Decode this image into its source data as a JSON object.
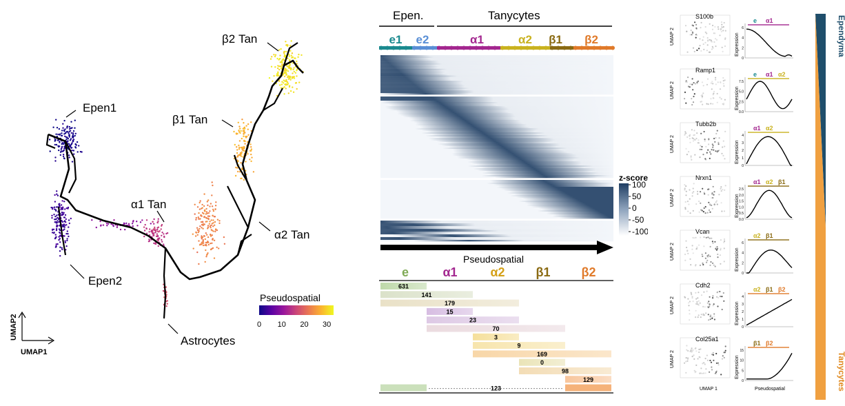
{
  "umap": {
    "labels": {
      "epen1": "Epen1",
      "epen2": "Epen2",
      "a1": "α1 Tan",
      "a2": "α2 Tan",
      "b1": "β1 Tan",
      "b2": "β2 Tan",
      "astro": "Astrocytes"
    },
    "axis_x": "UMAP1",
    "axis_y": "UMAP2",
    "colorbar": {
      "title": "Pseudospatial",
      "ticks": [
        "0",
        "10",
        "20",
        "30"
      ],
      "min": 0,
      "max": 33,
      "colors": [
        "#0d0887",
        "#5b02a3",
        "#9a179b",
        "#cb4678",
        "#eb7852",
        "#fbb32f",
        "#eff821"
      ]
    }
  },
  "heatmap": {
    "header_left": "Epen.",
    "header_right": "Tanycytes",
    "groups": [
      {
        "label": "e1",
        "color": "#1b8a8f"
      },
      {
        "label": "e2",
        "color": "#5a8fd6"
      },
      {
        "label": "α1",
        "color": "#a3278f"
      },
      {
        "label": "α2",
        "color": "#c9b21f"
      },
      {
        "label": "β1",
        "color": "#8a6a12"
      },
      {
        "label": "β2",
        "color": "#e07a2a"
      }
    ],
    "arrow_label": "Pseudospatial",
    "legend_title": "z-score",
    "legend_ticks": [
      "100",
      "50",
      "0",
      "-50",
      "-100"
    ],
    "colors": {
      "high": "#1f3e63",
      "low": "#f3f6fa"
    }
  },
  "gene_sets": {
    "columns": [
      {
        "label": "e",
        "color": "#7faa55"
      },
      {
        "label": "α1",
        "color": "#a3278f"
      },
      {
        "label": "α2",
        "color": "#d4a017"
      },
      {
        "label": "β1",
        "color": "#8a6a12"
      },
      {
        "label": "β2",
        "color": "#e07a2a"
      }
    ],
    "chart_data": {
      "type": "table",
      "rows": [
        {
          "count": "631",
          "from": 0,
          "to": 1,
          "color": "#a9cc8e"
        },
        {
          "count": "141",
          "from": 0,
          "to": 2,
          "color": "#cfd8b8"
        },
        {
          "count": "179",
          "from": 0,
          "to": 3,
          "color": "#e2d7b4"
        },
        {
          "count": "15",
          "from": 1,
          "to": 2,
          "color": "#c9a7d8"
        },
        {
          "count": "23",
          "from": 1,
          "to": 3,
          "color": "#d2b7dc"
        },
        {
          "count": "70",
          "from": 1,
          "to": 4,
          "color": "#e4cfd5"
        },
        {
          "count": "3",
          "from": 2,
          "to": 3,
          "color": "#f2d57a"
        },
        {
          "count": "9",
          "from": 2,
          "to": 4,
          "color": "#f4dc91"
        },
        {
          "count": "169",
          "from": 2,
          "to": 5,
          "color": "#f6c98b"
        },
        {
          "count": "0",
          "from": 3,
          "to": 4,
          "color": "#e3dba0"
        },
        {
          "count": "98",
          "from": 3,
          "to": 5,
          "color": "#efd19d"
        },
        {
          "count": "129",
          "from": 4,
          "to": 5,
          "color": "#f5b27a"
        },
        {
          "count": "123",
          "from": 0,
          "to": 5,
          "color": "#a9cc8e",
          "split": true
        }
      ]
    }
  },
  "genes": {
    "umap_x": "UMAP 1",
    "umap_y": "UMAP 2",
    "expr_y": "Expression",
    "pseudo_x": "Pseudospatial",
    "side_top": "Ependyma",
    "side_bottom": "Tanycytes",
    "items": [
      {
        "name": "S100b",
        "tags": [
          [
            "e",
            "#1b8a8f"
          ],
          [
            "α1",
            "#a3278f"
          ]
        ],
        "curve": "S100b",
        "yticks": [
          "6",
          "4",
          "2",
          "0"
        ]
      },
      {
        "name": "Ramp1",
        "tags": [
          [
            "e",
            "#1b8a8f"
          ],
          [
            "α1",
            "#a3278f"
          ],
          [
            "α2",
            "#c9b21f"
          ]
        ],
        "curve": "Ramp1",
        "yticks": [
          "7.5",
          "5.0",
          "2.5",
          "0.0"
        ]
      },
      {
        "name": "Tubb2b",
        "tags": [
          [
            "α1",
            "#a3278f"
          ],
          [
            "α2",
            "#c9b21f"
          ]
        ],
        "curve": "Tubb2b",
        "yticks": [
          "4",
          "3",
          "2",
          "1",
          "0"
        ]
      },
      {
        "name": "Nrxn1",
        "tags": [
          [
            "α1",
            "#a3278f"
          ],
          [
            "α2",
            "#c9b21f"
          ],
          [
            "β1",
            "#8a6a12"
          ]
        ],
        "curve": "Nrxn1",
        "yticks": [
          "2.5",
          "2.0",
          "1.5",
          "1.0",
          "0.5",
          "0.0"
        ]
      },
      {
        "name": "Vcan",
        "tags": [
          [
            "α2",
            "#c9b21f"
          ],
          [
            "β1",
            "#8a6a12"
          ]
        ],
        "curve": "Vcan",
        "yticks": [
          "6",
          "4",
          "2",
          "0"
        ]
      },
      {
        "name": "Cdh2",
        "tags": [
          [
            "α2",
            "#c9b21f"
          ],
          [
            "β1",
            "#8a6a12"
          ],
          [
            "β2",
            "#e07a2a"
          ]
        ],
        "curve": "Cdh2",
        "yticks": [
          "4",
          "3",
          "2",
          "1",
          "0"
        ]
      },
      {
        "name": "Col25a1",
        "tags": [
          [
            "β1",
            "#8a6a12"
          ],
          [
            "β2",
            "#e07a2a"
          ]
        ],
        "curve": "Col25a1",
        "yticks": [
          "15",
          "10",
          "5",
          "0"
        ]
      }
    ]
  }
}
